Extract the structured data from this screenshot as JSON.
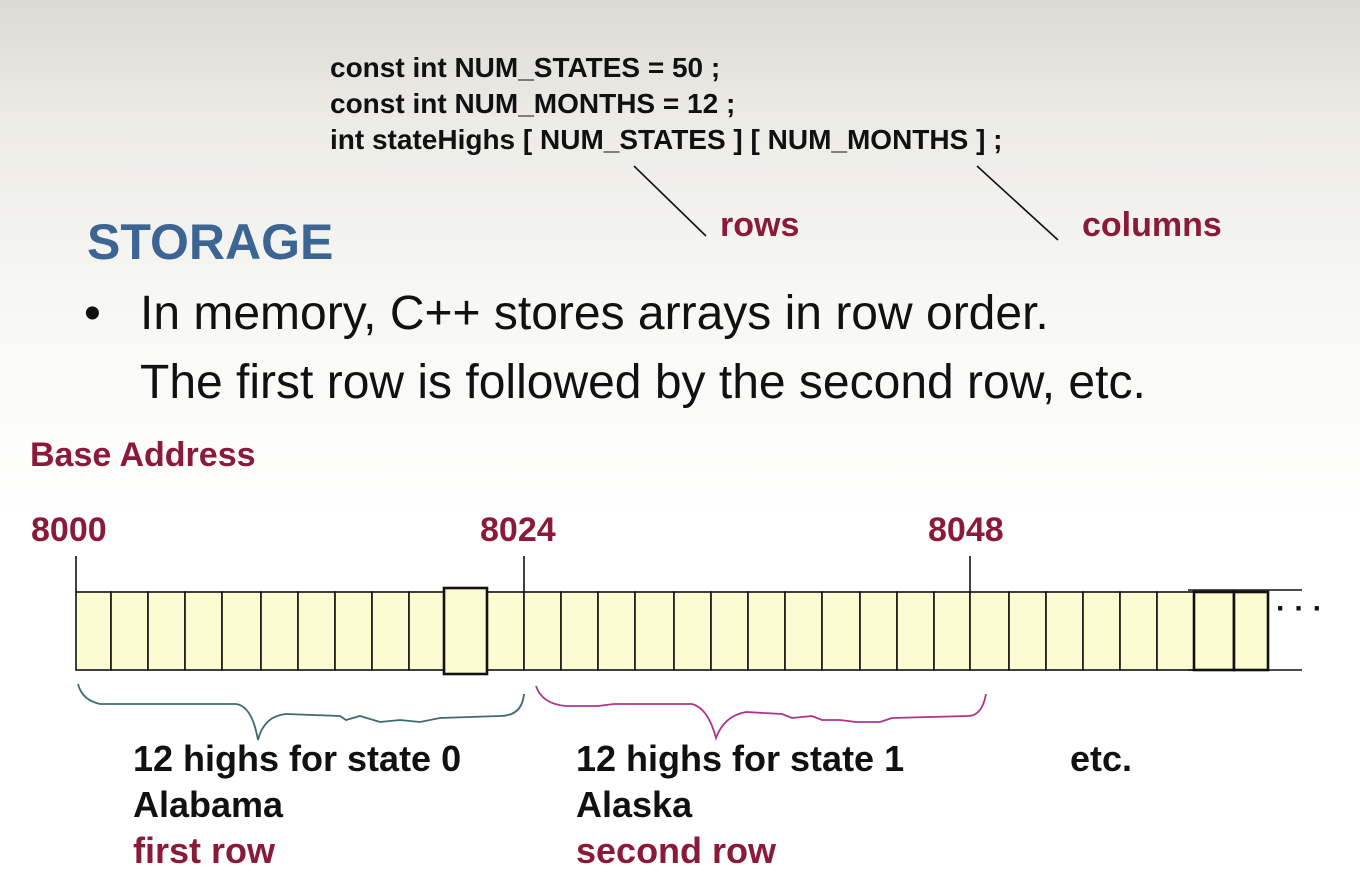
{
  "code": {
    "line1": "const  int  NUM_STATES   =  50 ;",
    "line2": "const  int  NUM_MONTHS  =  12 ;",
    "line3": "int  stateHighs [ NUM_STATES ] [ NUM_MONTHS ] ;"
  },
  "annotations": {
    "rows": "rows",
    "columns": "columns"
  },
  "heading": "STORAGE",
  "bullet": {
    "marker": "•",
    "line1": "In memory, C++ stores arrays in row order.",
    "line2": "The first row is followed by the second row, etc."
  },
  "base_address_label": "Base Address",
  "addresses": [
    "8000",
    "8024",
    "8048"
  ],
  "ellipsis": "· · ·",
  "groups": [
    {
      "title": "12 highs for state 0",
      "state": "Alabama",
      "row_label": "first row"
    },
    {
      "title": "12 highs for state 1",
      "state": "Alaska",
      "row_label": "second row"
    },
    {
      "title": "etc."
    }
  ],
  "colors": {
    "cell_fill": "#fcfcd2",
    "heading": "#3d6593",
    "accent": "#8b1a3a",
    "brace_row0": "#3d6c70",
    "brace_row1": "#b0338a"
  }
}
